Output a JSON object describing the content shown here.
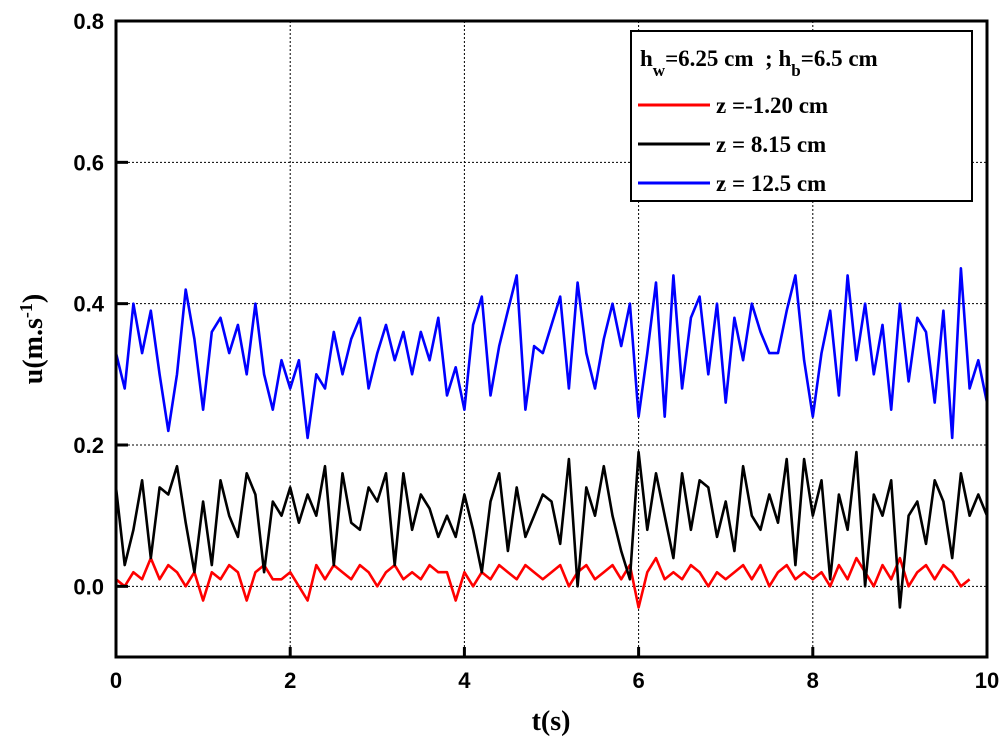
{
  "chart_data": {
    "type": "line",
    "title": "",
    "xlabel": "t(s)",
    "ylabel": "u(m.s-1)",
    "ylabel_parts": {
      "base": "u(m.s",
      "sup": "-1",
      "close": ")"
    },
    "xlim": [
      0,
      10
    ],
    "ylim": [
      -0.1,
      0.8
    ],
    "xticks": [
      "0",
      "2",
      "4",
      "6",
      "8",
      "10"
    ],
    "xtick_values": [
      0,
      2,
      4,
      6,
      8,
      10
    ],
    "yticks": [
      "0.0",
      "0.2",
      "0.4",
      "0.6",
      "0.8"
    ],
    "ytick_values": [
      0,
      0.2,
      0.4,
      0.6,
      0.8
    ],
    "grid": true,
    "legend": {
      "placement": "top-right",
      "header": {
        "h1_base": "h",
        "h1_sub": "w",
        "h1_rest": "=6.25 cm  ; ",
        "h2_base": "h",
        "h2_sub": "b",
        "h2_rest": "=6.5 cm"
      }
    },
    "x_step": 0.1,
    "series": [
      {
        "name": "z =-1.20 cm",
        "color": "#ff0000",
        "values": [
          0.01,
          0.0,
          0.02,
          0.01,
          0.04,
          0.01,
          0.03,
          0.02,
          0.0,
          0.02,
          -0.02,
          0.02,
          0.01,
          0.03,
          0.02,
          -0.02,
          0.02,
          0.03,
          0.01,
          0.01,
          0.02,
          0.0,
          -0.02,
          0.03,
          0.01,
          0.03,
          0.02,
          0.01,
          0.03,
          0.02,
          0.0,
          0.02,
          0.03,
          0.01,
          0.02,
          0.01,
          0.03,
          0.02,
          0.02,
          -0.02,
          0.02,
          0.0,
          0.02,
          0.01,
          0.03,
          0.02,
          0.01,
          0.03,
          0.02,
          0.01,
          0.02,
          0.03,
          0.0,
          0.02,
          0.03,
          0.01,
          0.02,
          0.03,
          0.01,
          0.03,
          -0.03,
          0.02,
          0.04,
          0.01,
          0.02,
          0.01,
          0.03,
          0.02,
          0.0,
          0.02,
          0.01,
          0.02,
          0.03,
          0.01,
          0.03,
          0.0,
          0.02,
          0.03,
          0.01,
          0.02,
          0.01,
          0.02,
          0.0,
          0.03,
          0.01,
          0.04,
          0.02,
          0.0,
          0.03,
          0.01,
          0.04,
          0.0,
          0.02,
          0.03,
          0.01,
          0.03,
          0.02,
          0.0,
          0.01
        ]
      },
      {
        "name": "z = 8.15 cm",
        "color": "#000000",
        "values": [
          0.14,
          0.03,
          0.08,
          0.15,
          0.04,
          0.14,
          0.13,
          0.17,
          0.09,
          0.02,
          0.12,
          0.03,
          0.15,
          0.1,
          0.07,
          0.16,
          0.13,
          0.02,
          0.12,
          0.1,
          0.14,
          0.09,
          0.13,
          0.1,
          0.17,
          0.03,
          0.16,
          0.09,
          0.08,
          0.14,
          0.12,
          0.16,
          0.03,
          0.16,
          0.08,
          0.13,
          0.11,
          0.07,
          0.1,
          0.07,
          0.13,
          0.08,
          0.02,
          0.12,
          0.16,
          0.05,
          0.14,
          0.07,
          0.1,
          0.13,
          0.12,
          0.06,
          0.18,
          0.0,
          0.14,
          0.1,
          0.17,
          0.1,
          0.05,
          0.01,
          0.19,
          0.08,
          0.16,
          0.1,
          0.04,
          0.16,
          0.08,
          0.15,
          0.14,
          0.07,
          0.12,
          0.05,
          0.17,
          0.1,
          0.08,
          0.13,
          0.09,
          0.18,
          0.03,
          0.18,
          0.1,
          0.15,
          0.01,
          0.13,
          0.08,
          0.19,
          0.0,
          0.13,
          0.1,
          0.15,
          -0.03,
          0.1,
          0.12,
          0.06,
          0.15,
          0.12,
          0.04,
          0.16,
          0.1,
          0.13,
          0.1
        ]
      },
      {
        "name": "z = 12.5  cm",
        "color": "#0000ff",
        "values": [
          0.33,
          0.28,
          0.4,
          0.33,
          0.39,
          0.3,
          0.22,
          0.3,
          0.42,
          0.35,
          0.25,
          0.36,
          0.38,
          0.33,
          0.37,
          0.3,
          0.4,
          0.3,
          0.25,
          0.32,
          0.28,
          0.32,
          0.21,
          0.3,
          0.28,
          0.36,
          0.3,
          0.35,
          0.38,
          0.28,
          0.33,
          0.37,
          0.32,
          0.36,
          0.3,
          0.36,
          0.32,
          0.38,
          0.27,
          0.31,
          0.25,
          0.37,
          0.41,
          0.27,
          0.34,
          0.39,
          0.44,
          0.25,
          0.34,
          0.33,
          0.37,
          0.41,
          0.28,
          0.43,
          0.33,
          0.28,
          0.35,
          0.4,
          0.34,
          0.4,
          0.24,
          0.33,
          0.43,
          0.24,
          0.44,
          0.28,
          0.38,
          0.41,
          0.3,
          0.4,
          0.26,
          0.38,
          0.32,
          0.4,
          0.36,
          0.33,
          0.33,
          0.39,
          0.44,
          0.32,
          0.24,
          0.33,
          0.39,
          0.27,
          0.44,
          0.32,
          0.4,
          0.3,
          0.37,
          0.25,
          0.4,
          0.29,
          0.38,
          0.36,
          0.26,
          0.39,
          0.21,
          0.45,
          0.28,
          0.32,
          0.26
        ]
      }
    ]
  }
}
